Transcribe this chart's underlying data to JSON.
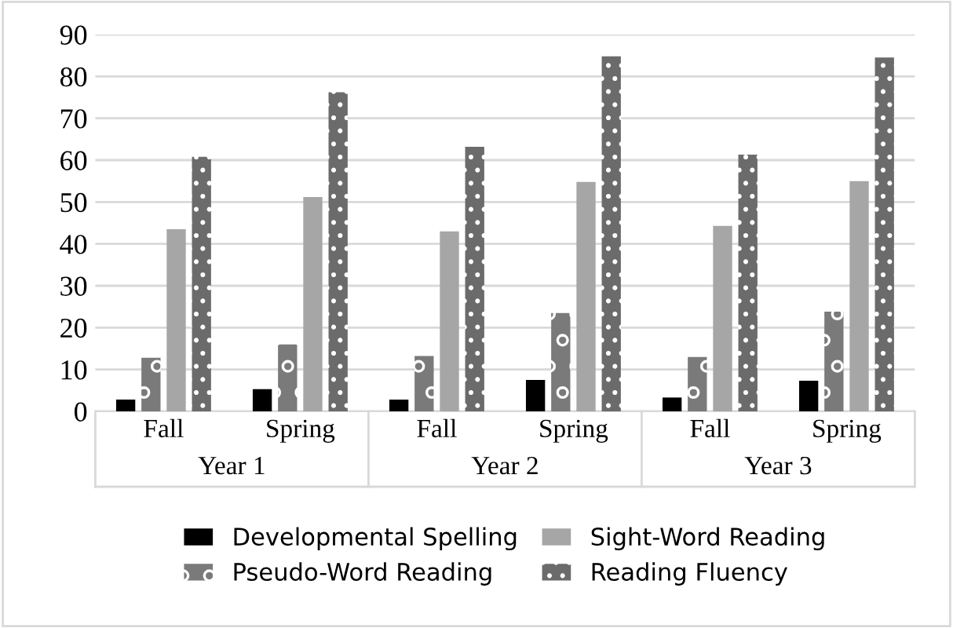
{
  "chart_data": {
    "type": "bar",
    "categories": [
      "Fall",
      "Spring",
      "Fall",
      "Spring",
      "Fall",
      "Spring"
    ],
    "annotations": [
      "Year 1",
      "Year 2",
      "Year 3"
    ],
    "series": [
      {
        "name": "Developmental Spelling",
        "color": "#000000",
        "values": [
          2.8,
          5.3,
          2.8,
          7.5,
          3.3,
          7.3
        ]
      },
      {
        "name": "Pseudo-Word Reading",
        "color": "#7a7a7a",
        "values": [
          12.8,
          16,
          13.2,
          23.5,
          13,
          23.8
        ]
      },
      {
        "name": "Sight-Word Reading",
        "color": "#a6a6a6",
        "values": [
          43.5,
          51.2,
          43,
          54.8,
          44.3,
          55
        ]
      },
      {
        "name": "Reading Fluency",
        "color": "#6b6b6b",
        "values": [
          60.8,
          76.2,
          63.2,
          84.8,
          61.3,
          84.5
        ]
      }
    ],
    "ylim": [
      0,
      90
    ],
    "yticks": [
      0,
      10,
      20,
      30,
      40,
      50,
      60,
      70,
      80,
      90
    ],
    "grid": "y",
    "legend": "bottom"
  }
}
